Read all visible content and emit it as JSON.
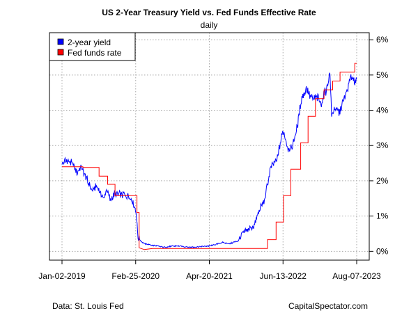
{
  "chart_data": {
    "type": "line",
    "title": "US 2-Year Treasury Yield vs. Fed Funds Effective Rate",
    "subtitle": "daily",
    "x_ticks": [
      "Jan-02-2019",
      "Feb-25-2020",
      "Apr-20-2021",
      "Jun-13-2022",
      "Aug-07-2023"
    ],
    "y_ticks": [
      "0%",
      "1%",
      "2%",
      "3%",
      "4%",
      "5%",
      "6%"
    ],
    "x_range": [
      "2019-01-02",
      "2023-08-07"
    ],
    "ylim": [
      -0.25,
      6.2
    ],
    "grid": true,
    "legend_position": "top-left",
    "series": [
      {
        "name": "2-year yield",
        "color": "#0000FF",
        "points": [
          [
            "2019-01-02",
            2.49
          ],
          [
            "2019-01-20",
            2.58
          ],
          [
            "2019-02-15",
            2.52
          ],
          [
            "2019-03-10",
            2.45
          ],
          [
            "2019-03-28",
            2.22
          ],
          [
            "2019-04-20",
            2.37
          ],
          [
            "2019-05-15",
            2.17
          ],
          [
            "2019-06-05",
            1.88
          ],
          [
            "2019-06-25",
            1.73
          ],
          [
            "2019-07-20",
            1.85
          ],
          [
            "2019-08-10",
            1.62
          ],
          [
            "2019-08-28",
            1.5
          ],
          [
            "2019-09-15",
            1.78
          ],
          [
            "2019-10-05",
            1.42
          ],
          [
            "2019-10-25",
            1.62
          ],
          [
            "2019-11-20",
            1.6
          ],
          [
            "2019-12-15",
            1.61
          ],
          [
            "2020-01-15",
            1.57
          ],
          [
            "2020-02-05",
            1.45
          ],
          [
            "2020-02-28",
            1.1
          ],
          [
            "2020-03-10",
            0.4
          ],
          [
            "2020-03-25",
            0.3
          ],
          [
            "2020-04-15",
            0.22
          ],
          [
            "2020-06-01",
            0.17
          ],
          [
            "2020-08-01",
            0.12
          ],
          [
            "2020-10-15",
            0.15
          ],
          [
            "2020-12-31",
            0.12
          ],
          [
            "2021-03-01",
            0.13
          ],
          [
            "2021-05-01",
            0.16
          ],
          [
            "2021-07-01",
            0.25
          ],
          [
            "2021-08-15",
            0.22
          ],
          [
            "2021-10-01",
            0.3
          ],
          [
            "2021-10-25",
            0.5
          ],
          [
            "2021-11-20",
            0.58
          ],
          [
            "2021-12-31",
            0.73
          ],
          [
            "2022-01-31",
            1.18
          ],
          [
            "2022-02-28",
            1.44
          ],
          [
            "2022-03-31",
            2.28
          ],
          [
            "2022-04-15",
            2.45
          ],
          [
            "2022-05-10",
            2.6
          ],
          [
            "2022-06-14",
            3.43
          ],
          [
            "2022-07-10",
            2.95
          ],
          [
            "2022-08-01",
            2.9
          ],
          [
            "2022-08-31",
            3.45
          ],
          [
            "2022-09-26",
            4.3
          ],
          [
            "2022-10-21",
            4.6
          ],
          [
            "2022-11-30",
            4.3
          ],
          [
            "2022-12-31",
            4.4
          ],
          [
            "2023-01-15",
            4.15
          ],
          [
            "2023-02-15",
            4.62
          ],
          [
            "2023-03-08",
            5.05
          ],
          [
            "2023-03-17",
            3.85
          ],
          [
            "2023-04-01",
            4.05
          ],
          [
            "2023-05-01",
            3.95
          ],
          [
            "2023-06-01",
            4.4
          ],
          [
            "2023-07-05",
            4.95
          ],
          [
            "2023-07-25",
            4.85
          ],
          [
            "2023-08-07",
            4.88
          ]
        ]
      },
      {
        "name": "Fed funds rate",
        "color": "#FF0000",
        "points": [
          [
            "2019-01-02",
            2.4
          ],
          [
            "2019-05-01",
            2.4
          ],
          [
            "2019-05-01",
            2.38
          ],
          [
            "2019-08-01",
            2.38
          ],
          [
            "2019-08-01",
            2.13
          ],
          [
            "2019-09-19",
            2.13
          ],
          [
            "2019-09-19",
            1.9
          ],
          [
            "2019-10-31",
            1.9
          ],
          [
            "2019-10-31",
            1.58
          ],
          [
            "2020-03-04",
            1.58
          ],
          [
            "2020-03-04",
            1.1
          ],
          [
            "2020-03-16",
            1.1
          ],
          [
            "2020-03-16",
            0.1
          ],
          [
            "2020-04-15",
            0.05
          ],
          [
            "2020-06-01",
            0.08
          ],
          [
            "2021-06-17",
            0.08
          ],
          [
            "2021-06-17",
            0.08
          ],
          [
            "2022-03-17",
            0.08
          ],
          [
            "2022-03-17",
            0.33
          ],
          [
            "2022-05-05",
            0.33
          ],
          [
            "2022-05-05",
            0.83
          ],
          [
            "2022-06-16",
            0.83
          ],
          [
            "2022-06-16",
            1.58
          ],
          [
            "2022-07-28",
            1.58
          ],
          [
            "2022-07-28",
            2.33
          ],
          [
            "2022-09-22",
            2.33
          ],
          [
            "2022-09-22",
            3.08
          ],
          [
            "2022-11-03",
            3.08
          ],
          [
            "2022-11-03",
            3.83
          ],
          [
            "2022-12-15",
            3.83
          ],
          [
            "2022-12-15",
            4.33
          ],
          [
            "2023-02-02",
            4.33
          ],
          [
            "2023-02-02",
            4.58
          ],
          [
            "2023-03-23",
            4.58
          ],
          [
            "2023-03-23",
            4.83
          ],
          [
            "2023-05-04",
            4.83
          ],
          [
            "2023-05-04",
            5.08
          ],
          [
            "2023-07-27",
            5.08
          ],
          [
            "2023-07-27",
            5.33
          ],
          [
            "2023-08-07",
            5.33
          ]
        ]
      }
    ]
  },
  "footer": {
    "source": "Data: St. Louis Fed",
    "credit": "CapitalSpectator.com"
  }
}
